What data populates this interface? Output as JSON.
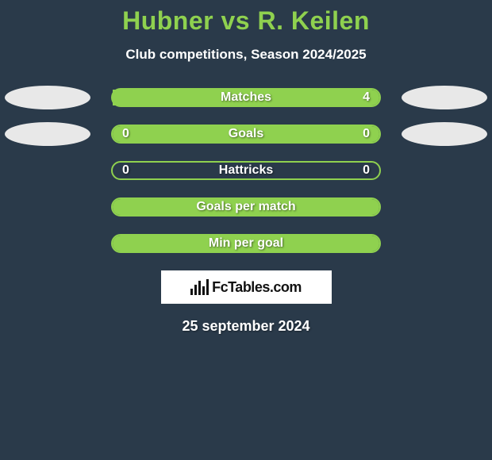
{
  "title": "Hubner vs R. Keilen",
  "subtitle": "Club competitions, Season 2024/2025",
  "colors": {
    "accent": "#8fd14f",
    "background": "#2a3a4a",
    "text": "#ffffff",
    "ellipse": "#e8e8e8",
    "badge_bg": "#ffffff",
    "badge_text": "#111111"
  },
  "rows": [
    {
      "label": "Matches",
      "left": "",
      "right": "4",
      "fill_side": "right",
      "fill_pct": 100,
      "show_left_ellipse": true,
      "show_right_ellipse": true
    },
    {
      "label": "Goals",
      "left": "0",
      "right": "0",
      "fill_side": "full",
      "fill_pct": 100,
      "show_left_ellipse": true,
      "show_right_ellipse": true
    },
    {
      "label": "Hattricks",
      "left": "0",
      "right": "0",
      "fill_side": "none",
      "fill_pct": 0,
      "show_left_ellipse": false,
      "show_right_ellipse": false
    },
    {
      "label": "Goals per match",
      "left": "",
      "right": "",
      "fill_side": "full",
      "fill_pct": 100,
      "show_left_ellipse": false,
      "show_right_ellipse": false
    },
    {
      "label": "Min per goal",
      "left": "",
      "right": "",
      "fill_side": "full",
      "fill_pct": 100,
      "show_left_ellipse": false,
      "show_right_ellipse": false
    }
  ],
  "logo_text": "FcTables.com",
  "date": "25 september 2024"
}
